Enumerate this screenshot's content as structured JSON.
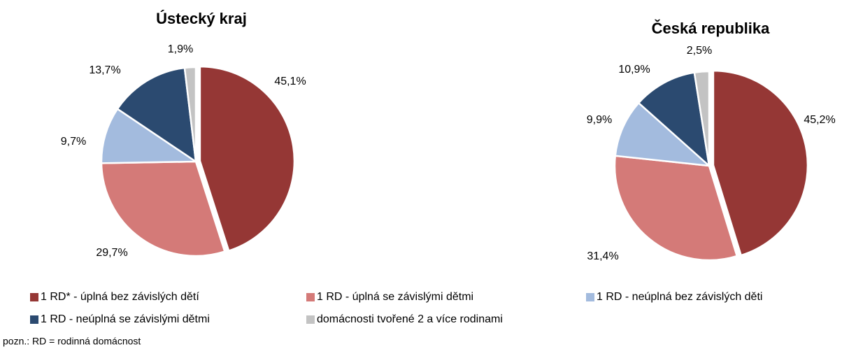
{
  "chart_data": [
    {
      "type": "pie",
      "title": "Ústecký kraj",
      "categories": [
        "1 RD* - úplná bez závislých dětí",
        "1 RD - úplná se závislými dětmi",
        "1 RD - neúplná bez závislých děti",
        "1 RD - neúplná se závislými dětmi",
        "domácnosti tvořené 2 a více rodinami"
      ],
      "values": [
        45.1,
        29.7,
        9.7,
        13.7,
        1.9
      ],
      "value_labels": [
        "45,1%",
        "29,7%",
        "9,7%",
        "13,7%",
        "1,9%"
      ],
      "colors": [
        "#953735",
        "#d47a78",
        "#a3bbde",
        "#2b4a70",
        "#c3c3c3"
      ]
    },
    {
      "type": "pie",
      "title": "Česká republika",
      "categories": [
        "1 RD* - úplná bez závislých dětí",
        "1 RD - úplná se závislými dětmi",
        "1 RD - neúplná bez závislých děti",
        "1 RD - neúplná se závislými dětmi",
        "domácnosti tvořené 2 a více rodinami"
      ],
      "values": [
        45.2,
        31.4,
        9.9,
        10.9,
        2.5
      ],
      "value_labels": [
        "45,2%",
        "31,4%",
        "9,9%",
        "10,9%",
        "2,5%"
      ],
      "colors": [
        "#953735",
        "#d47a78",
        "#a3bbde",
        "#2b4a70",
        "#c3c3c3"
      ]
    }
  ],
  "note": "pozn.: RD = rodinná domácnost"
}
